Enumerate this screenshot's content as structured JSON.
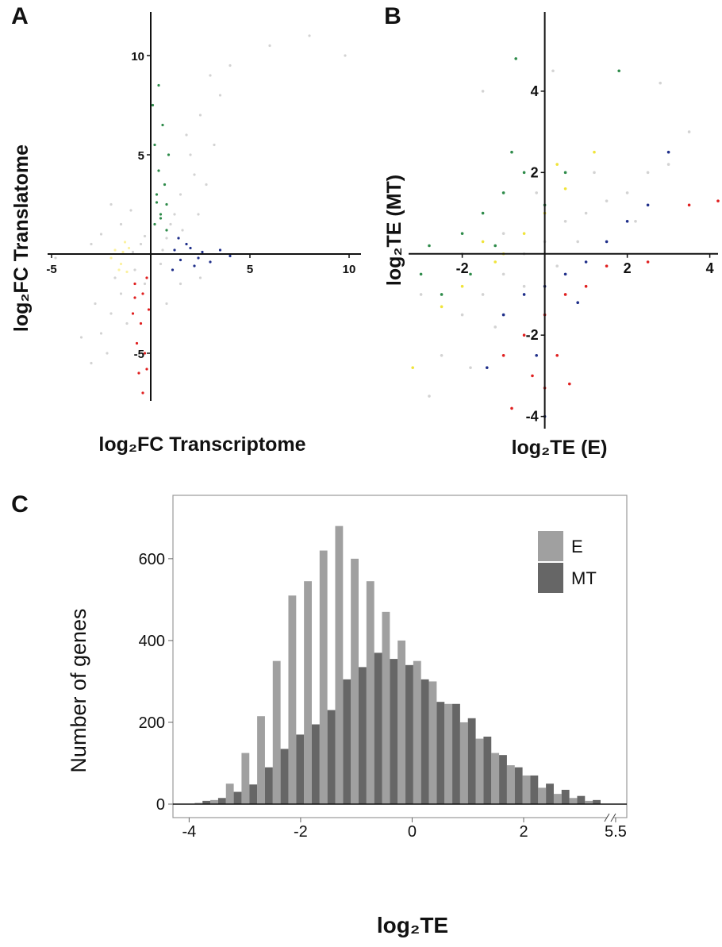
{
  "chart_data": [
    {
      "panel": "A",
      "type": "scatter",
      "xlabel": "log₂FC Transcriptome",
      "ylabel": "log₂FC Translatome",
      "xlim": [
        -5.2,
        10.6
      ],
      "ylim": [
        -7.4,
        12.2
      ],
      "xticks": [
        -5,
        5,
        10
      ],
      "yticks": [
        -5,
        5,
        10
      ],
      "series": [
        {
          "color": "#d3d3d3",
          "x": [
            -0.5,
            0.5,
            0.8,
            -0.8,
            0,
            -0.3,
            0.6,
            -0.9,
            1.5,
            2,
            2.5,
            3,
            1.2,
            2.2,
            1.8,
            3.5,
            2.8,
            4,
            6,
            8,
            9.8,
            1,
            1.6,
            2.4,
            3.2,
            -1.5,
            -2,
            -2.5,
            -3,
            -1.8,
            -2.8,
            -3.5,
            -1.2,
            -2.2,
            -1.5,
            -2,
            -1,
            -2.5,
            -3,
            -4.8,
            1.5,
            2.5,
            0.8,
            -0.3
          ],
          "y": [
            0.5,
            -0.5,
            0.8,
            -0.8,
            0,
            0.9,
            0.2,
            0.1,
            3,
            5,
            7,
            9,
            2,
            4,
            6,
            8,
            3.5,
            9.5,
            10.5,
            11,
            10,
            1.5,
            1.2,
            2,
            5.5,
            -2,
            -3,
            -4,
            -5.5,
            -1.2,
            -2.5,
            -4.2,
            -3.5,
            -5,
            1.5,
            2.5,
            2.2,
            1,
            0.5,
            -0.2,
            -1.5,
            -1.2,
            -2.5,
            -1.5
          ]
        },
        {
          "color": "#2e8b4a",
          "x": [
            0.2,
            0.5,
            0.8,
            0.3,
            0.7,
            0.4,
            0.9,
            0.2,
            0.6,
            0.1,
            0.4,
            0.8,
            0.5,
            0.3
          ],
          "y": [
            1.5,
            2,
            2.5,
            3,
            3.5,
            4.2,
            5,
            5.5,
            6.5,
            7.5,
            8.5,
            1.2,
            1.8,
            2.6
          ]
        },
        {
          "color": "#1f2f8a",
          "x": [
            1.2,
            1.5,
            1.8,
            2.2,
            2.6,
            3,
            1.4,
            2,
            3.5,
            1.1,
            2.4,
            4
          ],
          "y": [
            0.2,
            -0.3,
            0.5,
            -0.6,
            0.1,
            -0.4,
            0.8,
            0.3,
            0.2,
            -0.8,
            -0.2,
            -0.1
          ]
        },
        {
          "color": "#e02020",
          "x": [
            -0.8,
            -0.4,
            -0.2,
            -0.9,
            -0.5,
            -0.1,
            -0.7,
            -0.3,
            -0.6,
            -0.2,
            -0.4,
            -0.8
          ],
          "y": [
            -1.5,
            -2,
            -1.2,
            -3,
            -3.5,
            -2.8,
            -4.5,
            -5,
            -6,
            -5.8,
            -7,
            -2.2
          ]
        },
        {
          "color": "#fbf1a0",
          "x": [
            -1.2,
            -1.5,
            -1.8,
            -1.3,
            -2,
            -1.1,
            -1.6,
            -1.4
          ],
          "y": [
            -0.9,
            -0.5,
            0.2,
            0.6,
            -0.2,
            0.3,
            -0.8,
            0.1
          ]
        }
      ]
    },
    {
      "panel": "B",
      "type": "scatter",
      "xlabel": "log₂TE (E)",
      "ylabel": "log₂TE (MT)",
      "xlim": [
        -3.3,
        4.2
      ],
      "ylim": [
        -4.3,
        5.95
      ],
      "xticks": [
        -2,
        2,
        4
      ],
      "yticks": [
        -4,
        -2,
        2,
        4
      ],
      "series": [
        {
          "color": "#d3d3d3",
          "x": [
            -2.5,
            -2,
            -1.5,
            -1,
            -0.5,
            0,
            0.5,
            1,
            1.5,
            2,
            2.5,
            3,
            -1,
            -0.5,
            0.3,
            -1.8,
            -2.8,
            -1.2,
            0.8,
            1.2,
            -2,
            -3,
            -0.2,
            2.2,
            3.5,
            0.2,
            -1.5,
            2.8
          ],
          "y": [
            -2.5,
            -1.5,
            -1,
            -0.5,
            0,
            0.3,
            0.8,
            1,
            1.3,
            1.5,
            2,
            2.2,
            0.5,
            -0.8,
            -0.3,
            -2.8,
            -3.5,
            -1.8,
            0.3,
            2,
            0,
            -1,
            1.5,
            0.8,
            3,
            4.5,
            4,
            4.2
          ]
        },
        {
          "color": "#2e8b4a",
          "x": [
            -2.5,
            -2,
            -1.5,
            -1,
            -0.5,
            0,
            -1.8,
            -2.8,
            0.5,
            -1.2,
            -3,
            -0.8,
            1.8,
            -0.7
          ],
          "y": [
            -1,
            0.5,
            1,
            1.5,
            2,
            1.2,
            -0.5,
            0.2,
            2,
            0.2,
            -0.5,
            2.5,
            4.5,
            4.8
          ]
        },
        {
          "color": "#1f2f8a",
          "x": [
            -1,
            -0.5,
            0,
            0.5,
            1,
            1.5,
            2,
            2.5,
            -0.2,
            0.8,
            -1.4,
            3,
            0
          ],
          "y": [
            -1.5,
            -1,
            -0.8,
            -0.5,
            -0.2,
            0.3,
            0.8,
            1.2,
            -2.5,
            -1.2,
            -2.8,
            2.5,
            -4
          ]
        },
        {
          "color": "#e02020",
          "x": [
            -0.5,
            0,
            0.3,
            -0.3,
            0.5,
            1,
            1.5,
            2.5,
            -1,
            0,
            0.6,
            3.5,
            4.2,
            -0.8
          ],
          "y": [
            -2,
            -1.5,
            -2.5,
            -3,
            -1,
            -0.8,
            -0.3,
            -0.2,
            -2.5,
            -3.3,
            -3.2,
            1.2,
            1.3,
            -3.8
          ]
        },
        {
          "color": "#f0e43a",
          "x": [
            -1.5,
            -1,
            -0.5,
            0,
            0.5,
            -2,
            -2.5,
            -3.2,
            -1.2,
            0.3,
            1.2
          ],
          "y": [
            0.3,
            0,
            0.5,
            1,
            1.6,
            -0.8,
            -1.3,
            -2.8,
            -0.2,
            2.2,
            2.5
          ]
        }
      ]
    },
    {
      "panel": "C",
      "type": "histogram",
      "xlabel": "log₂TE",
      "ylabel": "Number of genes",
      "xlim": [
        -4.29,
        5.7
      ],
      "x_break": [
        3.55,
        5.4
      ],
      "ylim": [
        -33,
        755
      ],
      "xticks": [
        -4,
        -2,
        0,
        2,
        5.5
      ],
      "yticks": [
        0,
        200,
        400,
        600
      ],
      "legend": "top-right",
      "bins": [
        -3.9,
        -3.62,
        -3.34,
        -3.06,
        -2.78,
        -2.5,
        -2.22,
        -1.94,
        -1.66,
        -1.38,
        -1.1,
        -0.82,
        -0.54,
        -0.26,
        0.02,
        0.3,
        0.58,
        0.86,
        1.14,
        1.42,
        1.7,
        1.98,
        2.26,
        2.54,
        2.82,
        3.1,
        3.38
      ],
      "series": [
        {
          "name": "E",
          "color": "#a0a0a0",
          "values": [
            3,
            10,
            50,
            125,
            215,
            350,
            510,
            545,
            620,
            680,
            600,
            545,
            470,
            400,
            350,
            300,
            245,
            200,
            160,
            125,
            95,
            70,
            40,
            25,
            15,
            8
          ]
        },
        {
          "name": "MT",
          "color": "#666666",
          "values": [
            8,
            15,
            30,
            48,
            90,
            135,
            170,
            195,
            230,
            305,
            335,
            370,
            355,
            340,
            305,
            250,
            245,
            210,
            165,
            120,
            90,
            70,
            50,
            35,
            20,
            10
          ]
        }
      ]
    }
  ]
}
